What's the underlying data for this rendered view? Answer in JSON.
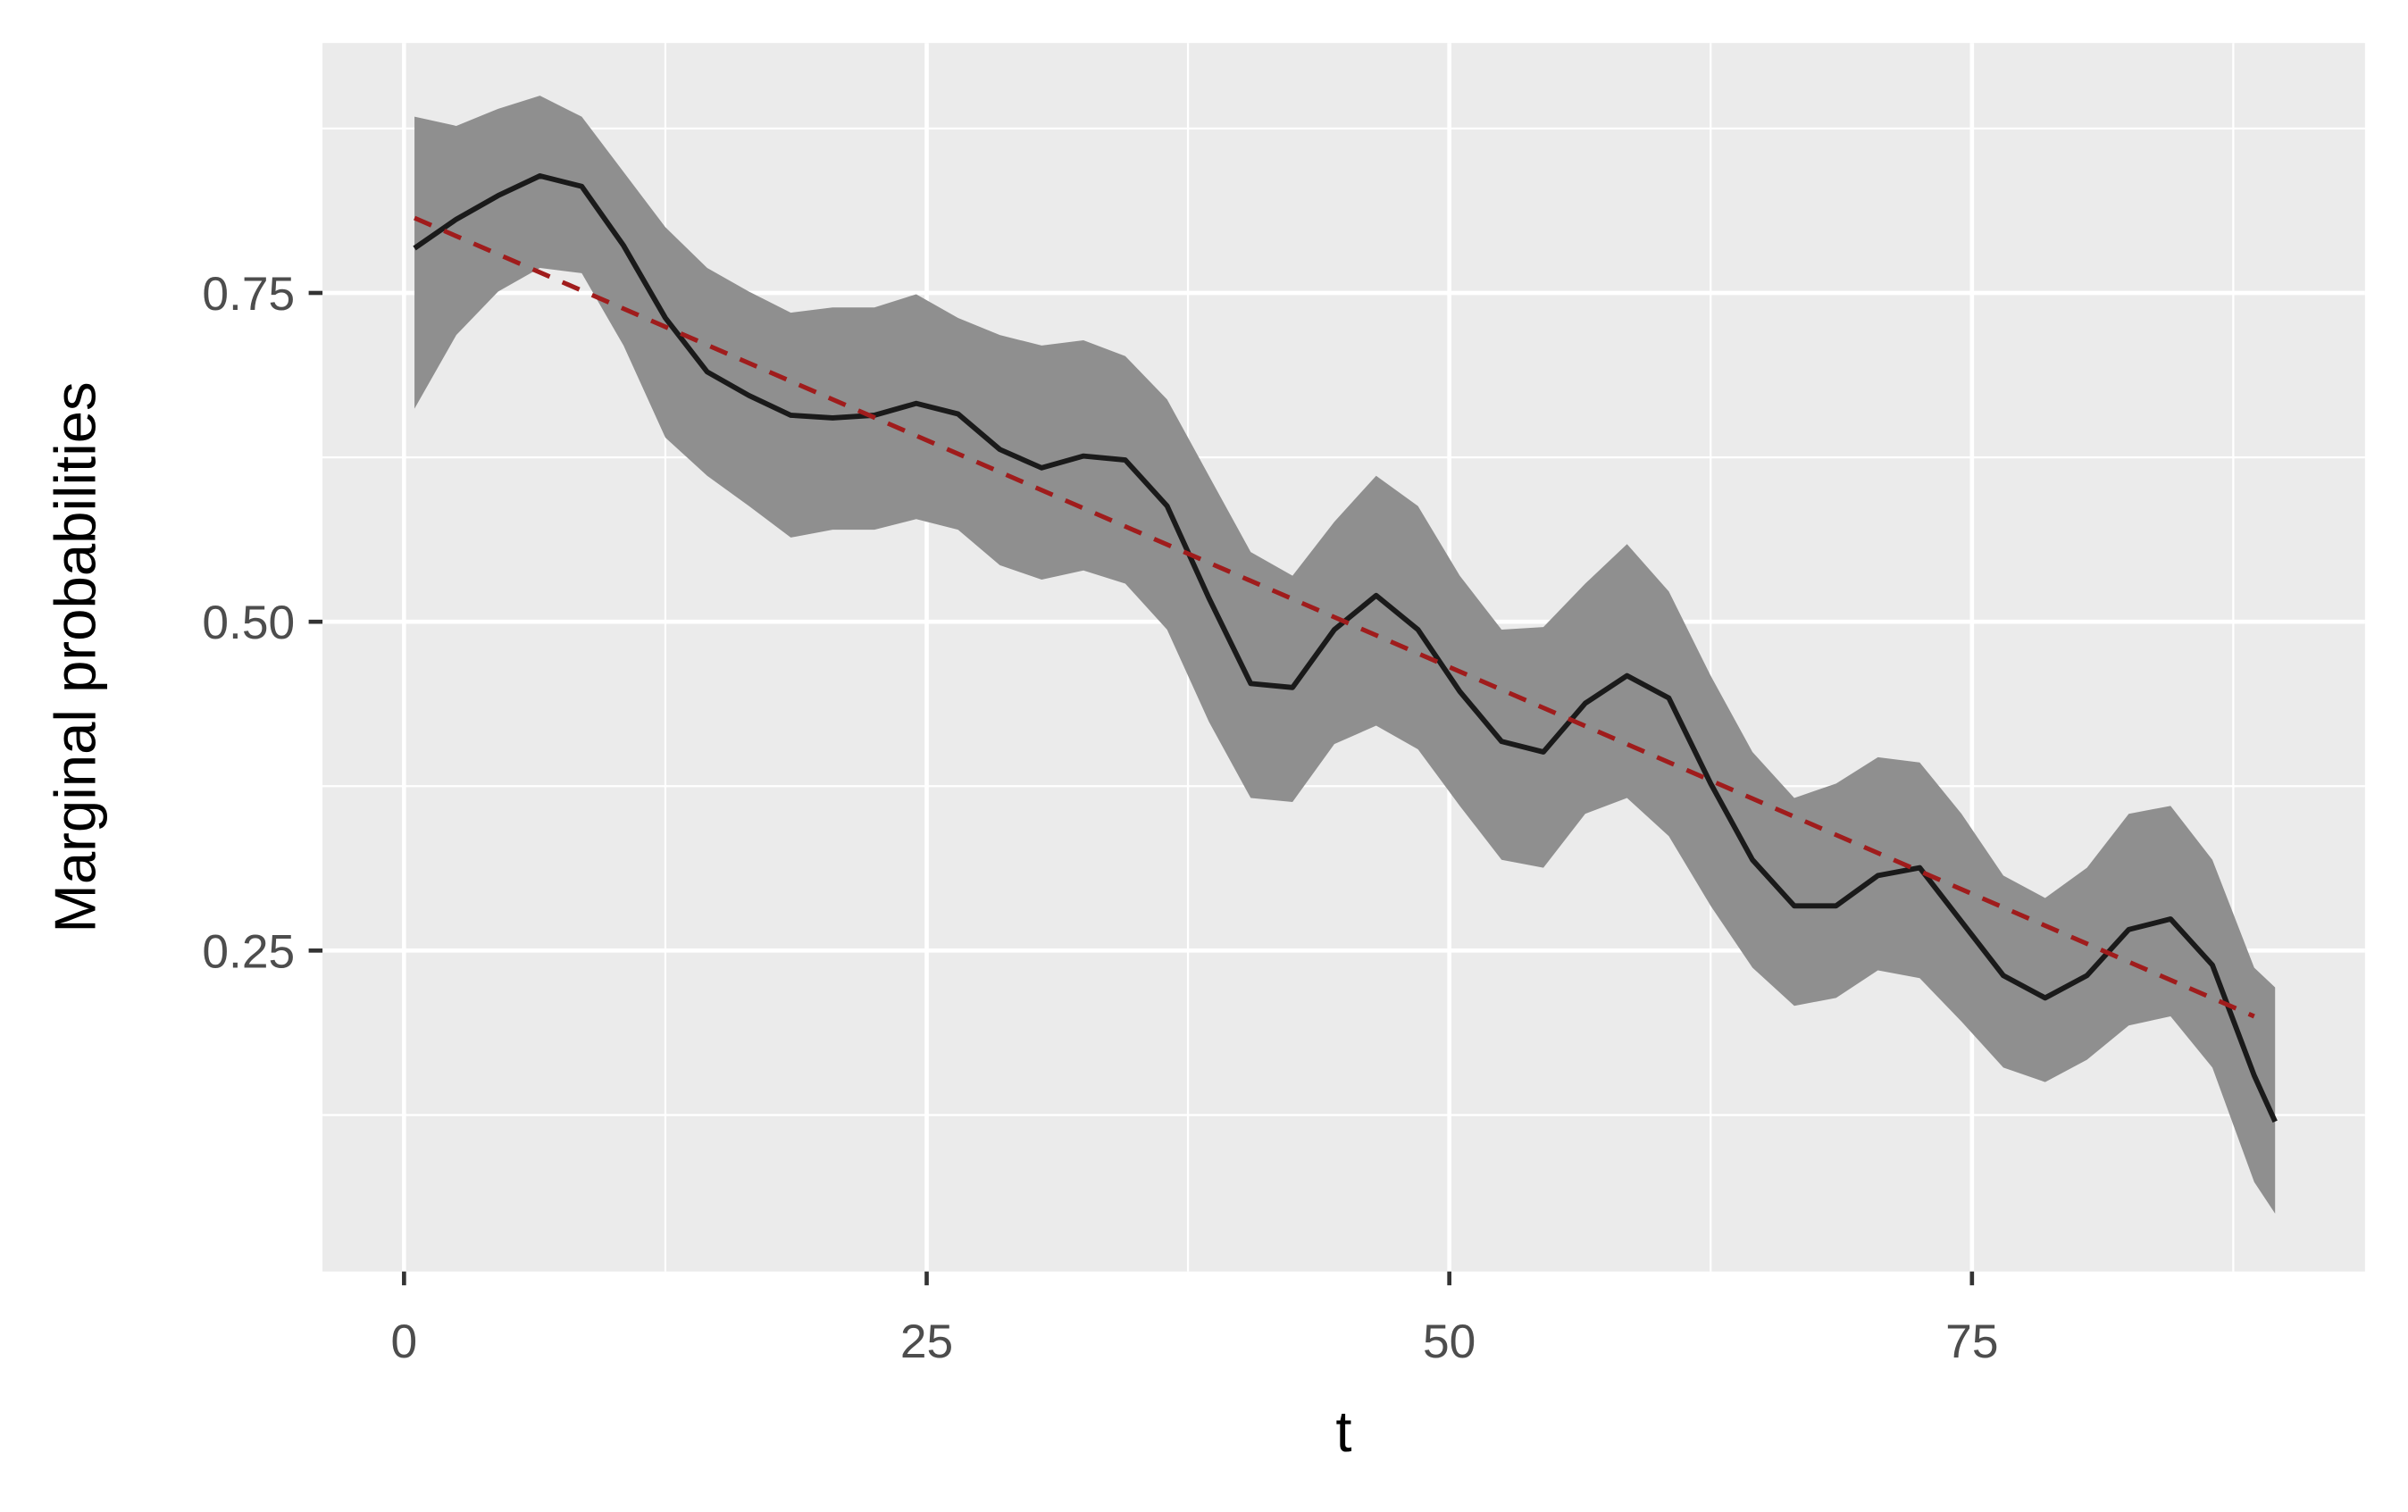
{
  "chart_data": {
    "type": "line",
    "x_label": "t",
    "y_label": "Marginal probabilities",
    "xlim": [
      -3.9,
      93.8
    ],
    "ylim": [
      0.006,
      0.94
    ],
    "xticks": [
      0,
      25,
      50,
      75
    ],
    "yticks": [
      0.25,
      {
        "value": 0.5,
        "label": "0.50"
      },
      0.75
    ],
    "x_minor_grid": [
      12.5,
      37.5,
      62.5,
      87.5
    ],
    "y_minor_grid": [
      0.125,
      0.375,
      0.625,
      0.875
    ],
    "grid": true,
    "x": [
      0.5,
      2.5,
      4.5,
      6.5,
      8.5,
      10.5,
      12.5,
      14.5,
      16.5,
      18.5,
      20.5,
      22.5,
      24.5,
      26.5,
      28.5,
      30.5,
      32.5,
      34.5,
      36.5,
      38.5,
      40.5,
      42.5,
      44.5,
      46.5,
      48.5,
      50.5,
      52.5,
      54.5,
      56.5,
      58.5,
      60.5,
      62.5,
      64.5,
      66.5,
      68.5,
      70.5,
      72.5,
      74.5,
      76.5,
      78.5,
      80.5,
      82.5,
      84.5,
      86.5,
      88.5,
      89.5
    ],
    "series": [
      {
        "color": "#1a1a1a",
        "values": [
          0.784,
          0.806,
          0.824,
          0.839,
          0.831,
          0.786,
          0.731,
          0.69,
          0.672,
          0.657,
          0.655,
          0.657,
          0.666,
          0.658,
          0.631,
          0.617,
          0.626,
          0.623,
          0.588,
          0.518,
          0.453,
          0.45,
          0.494,
          0.52,
          0.494,
          0.447,
          0.409,
          0.401,
          0.438,
          0.459,
          0.442,
          0.377,
          0.319,
          0.284,
          0.284,
          0.307,
          0.313,
          0.272,
          0.231,
          0.214,
          0.231,
          0.266,
          0.274,
          0.239,
          0.155,
          0.12
        ]
      }
    ],
    "band": {
      "color": "#8f8f8f",
      "lower": [
        0.662,
        0.718,
        0.751,
        0.769,
        0.765,
        0.71,
        0.64,
        0.611,
        0.588,
        0.564,
        0.57,
        0.57,
        0.578,
        0.57,
        0.543,
        0.532,
        0.539,
        0.529,
        0.494,
        0.424,
        0.366,
        0.363,
        0.407,
        0.421,
        0.403,
        0.36,
        0.319,
        0.313,
        0.354,
        0.366,
        0.337,
        0.284,
        0.237,
        0.208,
        0.214,
        0.235,
        0.229,
        0.196,
        0.161,
        0.15,
        0.167,
        0.193,
        0.2,
        0.161,
        0.074,
        0.05
      ],
      "upper": [
        0.884,
        0.877,
        0.89,
        0.9,
        0.884,
        0.842,
        0.8,
        0.769,
        0.751,
        0.735,
        0.739,
        0.739,
        0.749,
        0.731,
        0.718,
        0.71,
        0.714,
        0.702,
        0.669,
        0.611,
        0.553,
        0.535,
        0.576,
        0.611,
        0.588,
        0.535,
        0.494,
        0.496,
        0.529,
        0.559,
        0.523,
        0.459,
        0.401,
        0.366,
        0.377,
        0.397,
        0.393,
        0.354,
        0.307,
        0.29,
        0.313,
        0.354,
        0.36,
        0.319,
        0.237,
        0.222
      ]
    },
    "trend": {
      "color": "#a01c1c",
      "dashed": true,
      "x": [
        0.5,
        88.5
      ],
      "values": [
        0.807,
        0.2
      ]
    }
  }
}
